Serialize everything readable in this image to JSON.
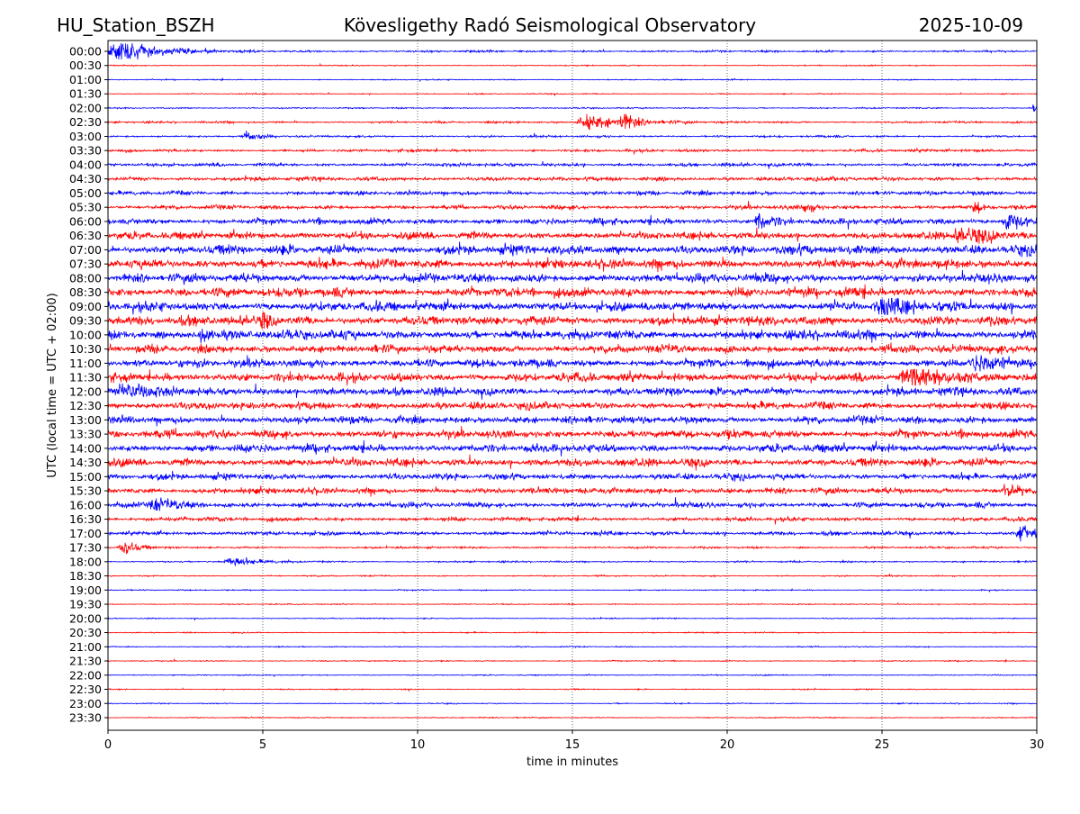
{
  "chart_data": {
    "type": "line",
    "title_left": "HU_Station_BSZH",
    "title": "Kövesligethy Radó Seismological Observatory",
    "title_right": "2025-10-09",
    "xlabel": "time in minutes",
    "ylabel": "UTC (local time = UTC + 02:00)",
    "xlim": [
      0,
      30
    ],
    "xticks": [
      "0",
      "5",
      "10",
      "15",
      "20",
      "25",
      "30"
    ],
    "xtick_values": [
      0,
      5,
      10,
      15,
      20,
      25,
      30
    ],
    "grid": "vertical dotted",
    "colors": [
      "#0000ff",
      "#ff0000"
    ],
    "rows": [
      "00:00",
      "00:30",
      "01:00",
      "01:30",
      "02:00",
      "02:30",
      "03:00",
      "03:30",
      "04:00",
      "04:30",
      "05:00",
      "05:30",
      "06:00",
      "06:30",
      "07:00",
      "07:30",
      "08:00",
      "08:30",
      "09:00",
      "09:30",
      "10:00",
      "10:30",
      "11:00",
      "11:30",
      "12:00",
      "12:30",
      "13:00",
      "13:30",
      "14:00",
      "14:30",
      "15:00",
      "15:30",
      "16:00",
      "16:30",
      "17:00",
      "17:30",
      "18:00",
      "18:30",
      "19:00",
      "19:30",
      "20:00",
      "20:30",
      "21:00",
      "21:30",
      "22:00",
      "22:30",
      "23:00",
      "23:30"
    ],
    "noise_level": [
      0.15,
      0.08,
      0.08,
      0.08,
      0.1,
      0.15,
      0.15,
      0.2,
      0.25,
      0.3,
      0.3,
      0.3,
      0.45,
      0.55,
      0.7,
      0.7,
      0.65,
      0.7,
      0.7,
      0.7,
      0.7,
      0.6,
      0.6,
      0.65,
      0.6,
      0.55,
      0.55,
      0.6,
      0.6,
      0.6,
      0.45,
      0.45,
      0.4,
      0.3,
      0.3,
      0.15,
      0.12,
      0.1,
      0.08,
      0.08,
      0.08,
      0.08,
      0.08,
      0.08,
      0.08,
      0.08,
      0.08,
      0.08
    ],
    "events": [
      {
        "row": 0,
        "minute": 0.3,
        "amp": 1.0,
        "duration": 3
      },
      {
        "row": 4,
        "minute": 29.9,
        "amp": 0.8,
        "duration": 0.3
      },
      {
        "row": 5,
        "minute": 15.5,
        "amp": 0.6,
        "duration": 3
      },
      {
        "row": 5,
        "minute": 16.6,
        "amp": 1.0,
        "duration": 0.8
      },
      {
        "row": 6,
        "minute": 4.5,
        "amp": 0.4,
        "duration": 1
      },
      {
        "row": 11,
        "minute": 22.5,
        "amp": 0.6,
        "duration": 0.6
      },
      {
        "row": 11,
        "minute": 28,
        "amp": 0.6,
        "duration": 0.6
      },
      {
        "row": 12,
        "minute": 21,
        "amp": 0.9,
        "duration": 1
      },
      {
        "row": 12,
        "minute": 29,
        "amp": 0.8,
        "duration": 1.5
      },
      {
        "row": 13,
        "minute": 27.5,
        "amp": 0.7,
        "duration": 2
      },
      {
        "row": 18,
        "minute": 25,
        "amp": 0.9,
        "duration": 2
      },
      {
        "row": 19,
        "minute": 5,
        "amp": 0.8,
        "duration": 0.6
      },
      {
        "row": 20,
        "minute": 3,
        "amp": 0.8,
        "duration": 0.5
      },
      {
        "row": 22,
        "minute": 28,
        "amp": 0.8,
        "duration": 2
      },
      {
        "row": 23,
        "minute": 26,
        "amp": 1.0,
        "duration": 3
      },
      {
        "row": 24,
        "minute": 0.5,
        "amp": 0.8,
        "duration": 1.5
      },
      {
        "row": 31,
        "minute": 29,
        "amp": 0.6,
        "duration": 1
      },
      {
        "row": 32,
        "minute": 1.5,
        "amp": 0.6,
        "duration": 1.5
      },
      {
        "row": 34,
        "minute": 29.5,
        "amp": 0.9,
        "duration": 1.5
      },
      {
        "row": 35,
        "minute": 0.5,
        "amp": 0.7,
        "duration": 1
      },
      {
        "row": 36,
        "minute": 4,
        "amp": 0.4,
        "duration": 2
      }
    ]
  }
}
